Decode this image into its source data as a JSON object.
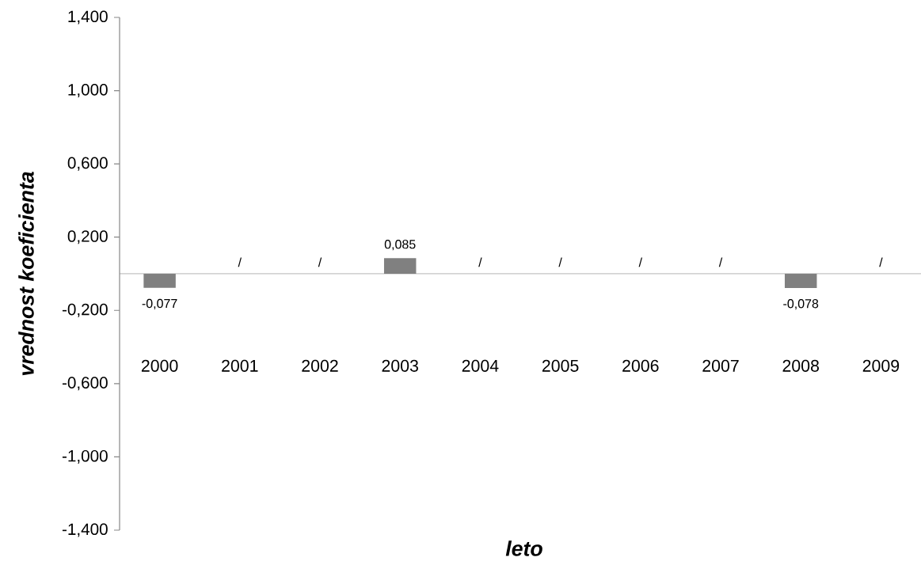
{
  "chart_data": {
    "type": "bar",
    "xlabel": "leto",
    "ylabel": "vrednost koeficienta",
    "categories": [
      "2000",
      "2001",
      "2002",
      "2003",
      "2004",
      "2005",
      "2006",
      "2007",
      "2008",
      "2009"
    ],
    "values": [
      -0.077,
      null,
      null,
      0.085,
      null,
      null,
      null,
      null,
      -0.078,
      null
    ],
    "value_labels": [
      "-0,077",
      "/",
      "/",
      "0,085",
      "/",
      "/",
      "/",
      "/",
      "-0,078",
      "/"
    ],
    "color": "#808080",
    "ylim": [
      -1.4,
      1.4
    ],
    "yticks": [
      {
        "value": -1.4,
        "label": "-1,400"
      },
      {
        "value": -1.0,
        "label": "-1,000"
      },
      {
        "value": -0.6,
        "label": "-0,600"
      },
      {
        "value": -0.2,
        "label": "-0,200"
      },
      {
        "value": 0.2,
        "label": "0,200"
      },
      {
        "value": 0.6,
        "label": "0,600"
      },
      {
        "value": 1.0,
        "label": "1,000"
      },
      {
        "value": 1.4,
        "label": "1,400"
      }
    ]
  }
}
